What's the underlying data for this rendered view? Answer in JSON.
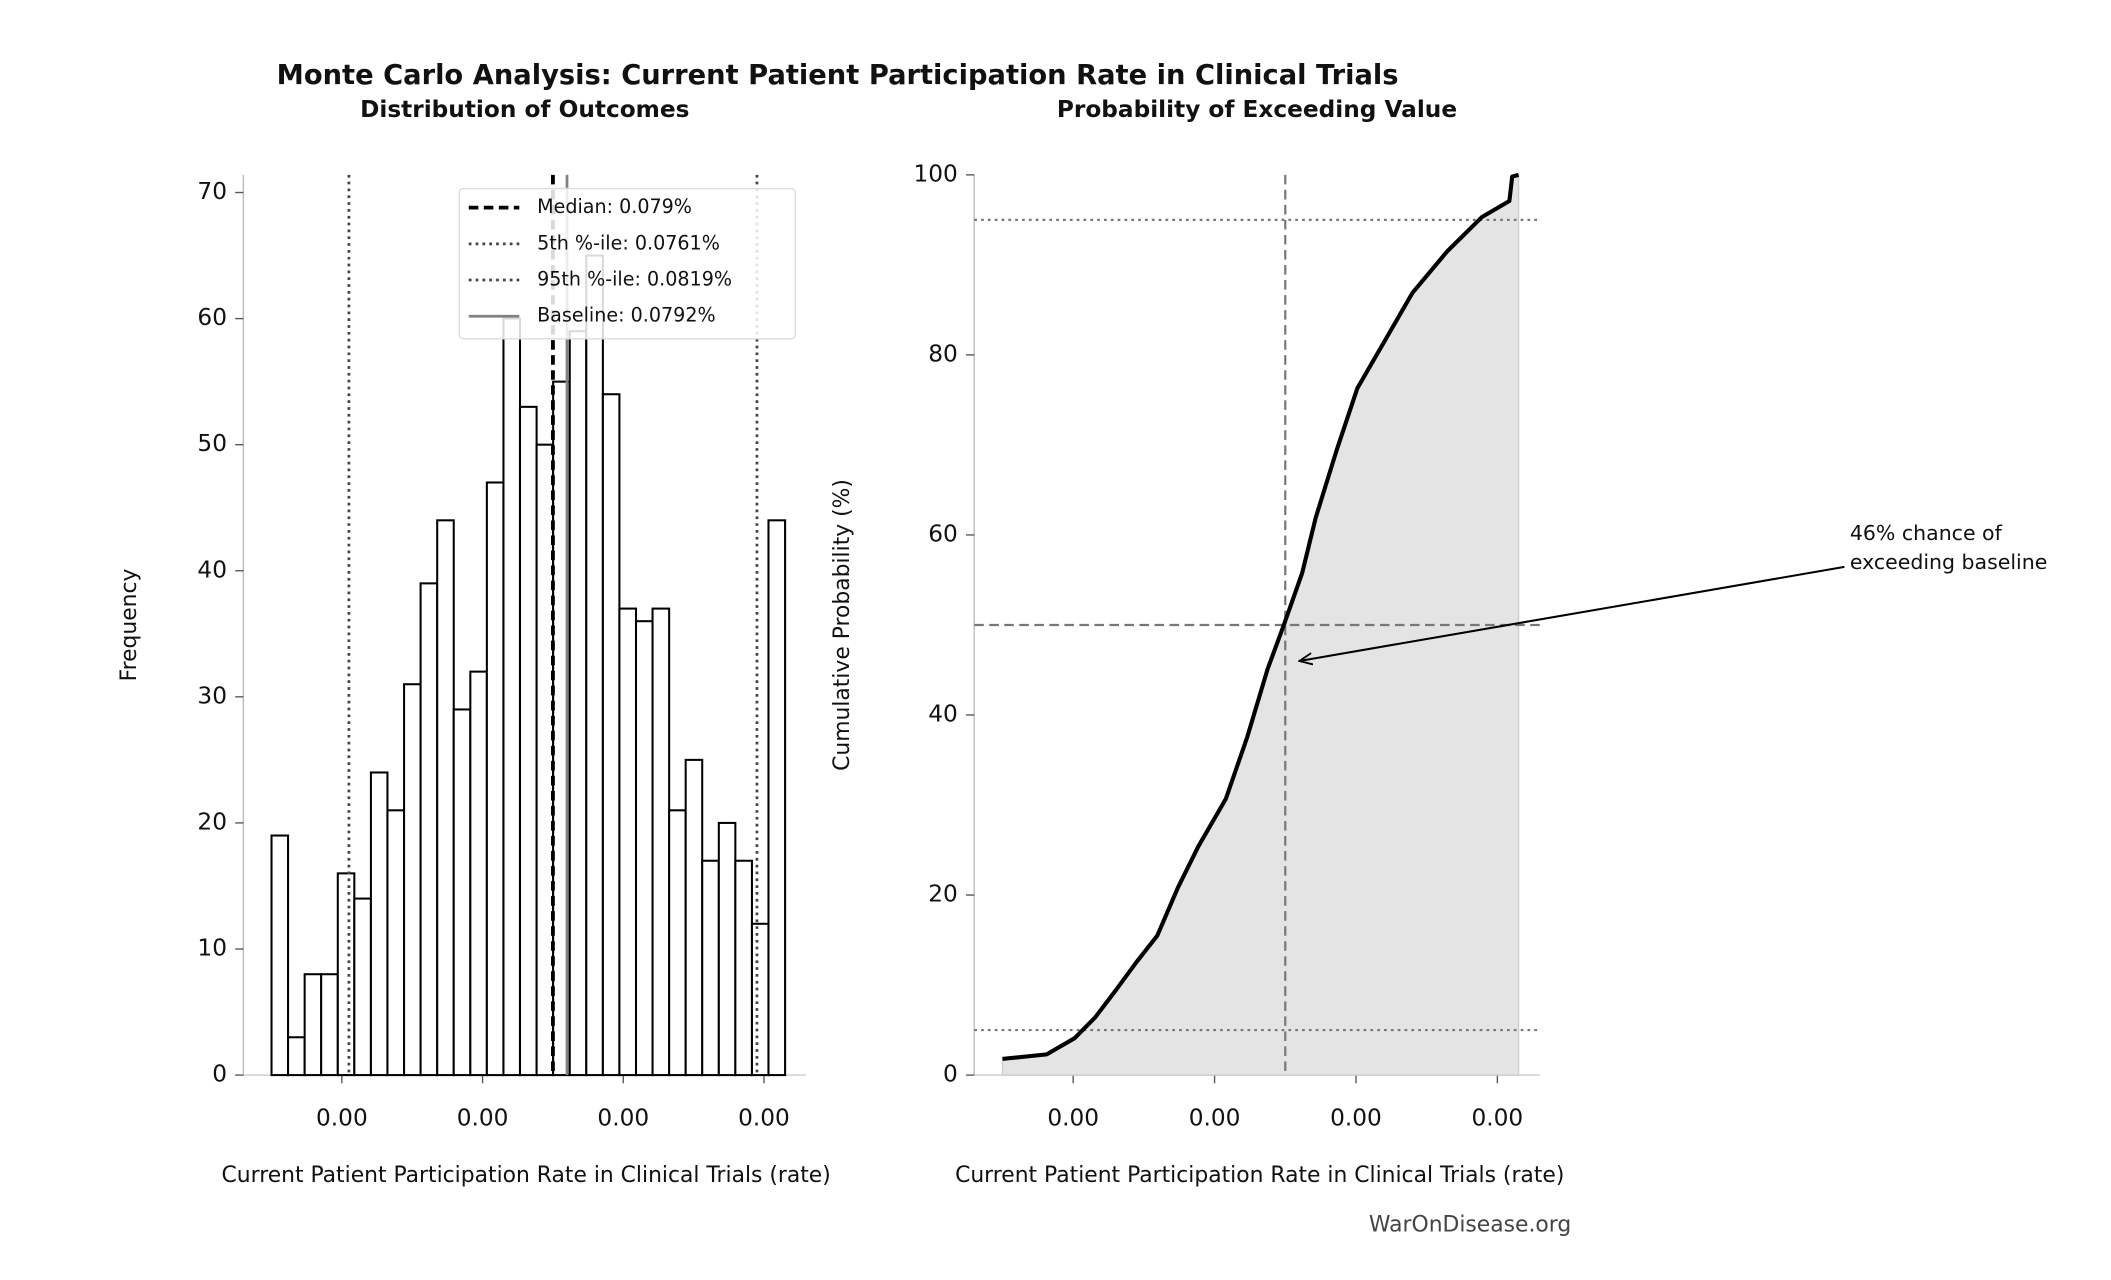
{
  "title": "Monte Carlo Analysis: Current Patient Participation Rate in Clinical Trials",
  "footer": "WarOnDisease.org",
  "chart_data": [
    {
      "type": "histogram",
      "title": "Distribution of Outcomes",
      "x_label": "Current Patient Participation Rate in Clinical Trials (rate)",
      "y_label": "Frequency",
      "bins": [
        0.00075,
        0.00075235,
        0.00075471,
        0.00075706,
        0.00075942,
        0.00076177,
        0.00076413,
        0.00076648,
        0.00076884,
        0.00077119,
        0.00077355,
        0.0007759,
        0.00077826,
        0.00078061,
        0.00078297,
        0.00078532,
        0.00078768,
        0.00079003,
        0.00079239,
        0.00079474,
        0.0007971,
        0.00079945,
        0.00080181,
        0.00080416,
        0.00080652,
        0.00080887,
        0.00081122,
        0.00081358,
        0.00081593,
        0.00081829,
        0.00082064,
        0.000823
      ],
      "values": [
        19,
        3,
        8,
        8,
        16,
        14,
        24,
        21,
        31,
        39,
        44,
        29,
        32,
        47,
        60,
        53,
        50,
        55,
        59,
        65,
        54,
        37,
        36,
        37,
        21,
        25,
        17,
        20,
        17,
        12,
        44
      ],
      "color": "#ffffff",
      "edgecolor": "#000000",
      "xlim": [
        0.000746,
        0.000826
      ],
      "ylim": [
        0,
        71.4
      ],
      "xticks": [
        {
          "value": 0.00076,
          "label": "0.00"
        },
        {
          "value": 0.00078,
          "label": "0.00"
        },
        {
          "value": 0.0008,
          "label": "0.00"
        },
        {
          "value": 0.00082,
          "label": "0.00"
        }
      ],
      "yticks": [
        0,
        10,
        20,
        30,
        40,
        50,
        60,
        70
      ],
      "vlines": [
        {
          "name": "Median: 0.079%",
          "value": 0.00079,
          "style": "dashed",
          "color": "#000000"
        },
        {
          "name": "5th %-ile: 0.0761%",
          "value": 0.000761,
          "style": "dotted",
          "color": "#444444"
        },
        {
          "name": "95th %-ile: 0.0819%",
          "value": 0.000819,
          "style": "dotted",
          "color": "#444444"
        },
        {
          "name": "Baseline: 0.0792%",
          "value": 0.000792,
          "style": "solid",
          "color": "#808080"
        }
      ],
      "legend": "upper right"
    },
    {
      "type": "area",
      "title": "Probability of Exceeding Value",
      "x_label": "Current Patient Participation Rate in Clinical Trials (rate)",
      "y_label": "Cumulative Probability (%)",
      "x": [
        0.00075,
        0.00075625,
        0.0007602,
        0.0007631,
        0.000766,
        0.0007689,
        0.0007719,
        0.0007748,
        0.0007777,
        0.0007816,
        0.0007846,
        0.0007875,
        0.0007898,
        0.0007924,
        0.0007943,
        0.0007973,
        0.0008002,
        0.0008041,
        0.000808,
        0.0008129,
        0.0008178,
        0.0008217,
        0.0008221,
        0.000823
      ],
      "values": [
        1.8,
        2.3,
        4.1,
        6.4,
        9.4,
        12.5,
        15.5,
        20.8,
        25.4,
        30.7,
        37.5,
        45.1,
        50,
        55.8,
        61.9,
        69.5,
        76.3,
        81.6,
        86.9,
        91.5,
        95.3,
        97.1,
        99.8,
        100
      ],
      "color": "#000000",
      "fill": "#e4e4e4",
      "xlim": [
        0.000746,
        0.000826
      ],
      "ylim": [
        0,
        100
      ],
      "xticks": [
        {
          "value": 0.00076,
          "label": "0.00"
        },
        {
          "value": 0.00078,
          "label": "0.00"
        },
        {
          "value": 0.0008,
          "label": "0.00"
        },
        {
          "value": 0.00082,
          "label": "0.00"
        }
      ],
      "yticks": [
        0,
        20,
        40,
        60,
        80,
        100
      ],
      "hlines": [
        {
          "value": 5,
          "style": "dotted"
        },
        {
          "value": 95,
          "style": "dotted"
        },
        {
          "value": 50,
          "style": "dashed"
        }
      ],
      "vlines": [
        {
          "value": 0.00079,
          "style": "dashed"
        }
      ],
      "annotation": {
        "text": [
          "46% chance of",
          "exceeding baseline"
        ],
        "x": 0.000792,
        "y": 46
      }
    }
  ]
}
